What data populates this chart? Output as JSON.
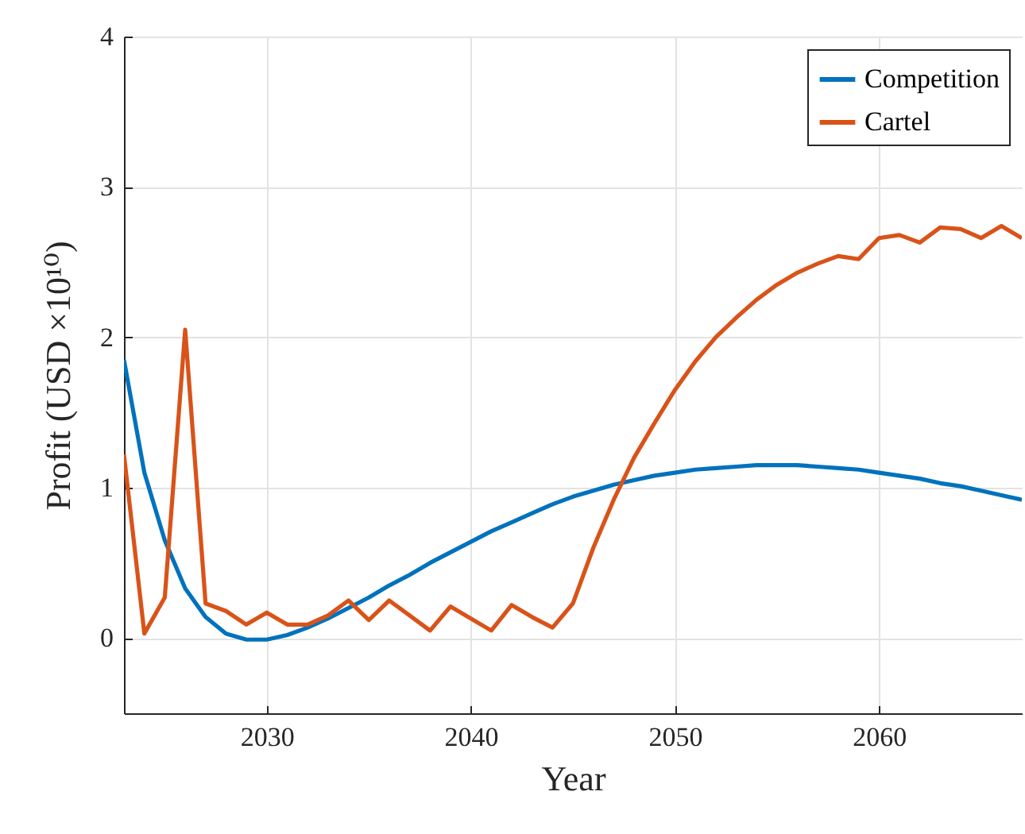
{
  "chart_data": {
    "type": "line",
    "xlabel": "Year",
    "ylabel": "Profit (USD ×10¹⁰)",
    "x": [
      2023,
      2024,
      2025,
      2026,
      2027,
      2028,
      2029,
      2030,
      2031,
      2032,
      2033,
      2034,
      2035,
      2036,
      2037,
      2038,
      2039,
      2040,
      2041,
      2042,
      2043,
      2044,
      2045,
      2046,
      2047,
      2048,
      2049,
      2050,
      2051,
      2052,
      2053,
      2054,
      2055,
      2056,
      2057,
      2058,
      2059,
      2060,
      2061,
      2062,
      2063,
      2064,
      2065,
      2066,
      2067
    ],
    "series": [
      {
        "name": "Competition",
        "color": "#0072bd",
        "values": [
          1.85,
          1.1,
          0.65,
          0.33,
          0.14,
          0.03,
          -0.01,
          -0.01,
          0.02,
          0.07,
          0.13,
          0.2,
          0.27,
          0.35,
          0.42,
          0.5,
          0.57,
          0.64,
          0.71,
          0.77,
          0.83,
          0.89,
          0.94,
          0.98,
          1.02,
          1.05,
          1.08,
          1.1,
          1.12,
          1.13,
          1.14,
          1.15,
          1.15,
          1.15,
          1.14,
          1.13,
          1.12,
          1.1,
          1.08,
          1.06,
          1.03,
          1.01,
          0.98,
          0.95,
          0.92
        ]
      },
      {
        "name": "Cartel",
        "color": "#d95319",
        "values": [
          1.22,
          0.03,
          0.27,
          2.05,
          0.23,
          0.18,
          0.09,
          0.17,
          0.09,
          0.09,
          0.15,
          0.25,
          0.12,
          0.25,
          0.15,
          0.05,
          0.21,
          0.13,
          0.05,
          0.22,
          0.14,
          0.07,
          0.23,
          0.6,
          0.92,
          1.2,
          1.43,
          1.65,
          1.84,
          2.0,
          2.13,
          2.25,
          2.35,
          2.43,
          2.49,
          2.54,
          2.52,
          2.66,
          2.68,
          2.63,
          2.73,
          2.72,
          2.66,
          2.74,
          2.66
        ]
      }
    ],
    "xlim": [
      2023,
      2067
    ],
    "xticks": [
      2030,
      2040,
      2050,
      2060
    ],
    "ylim": [
      -0.5,
      4
    ],
    "yticks": [
      0,
      1,
      2,
      3,
      4
    ],
    "grid": true,
    "legend": "top right",
    "marker": "none",
    "line_style": "solid"
  }
}
